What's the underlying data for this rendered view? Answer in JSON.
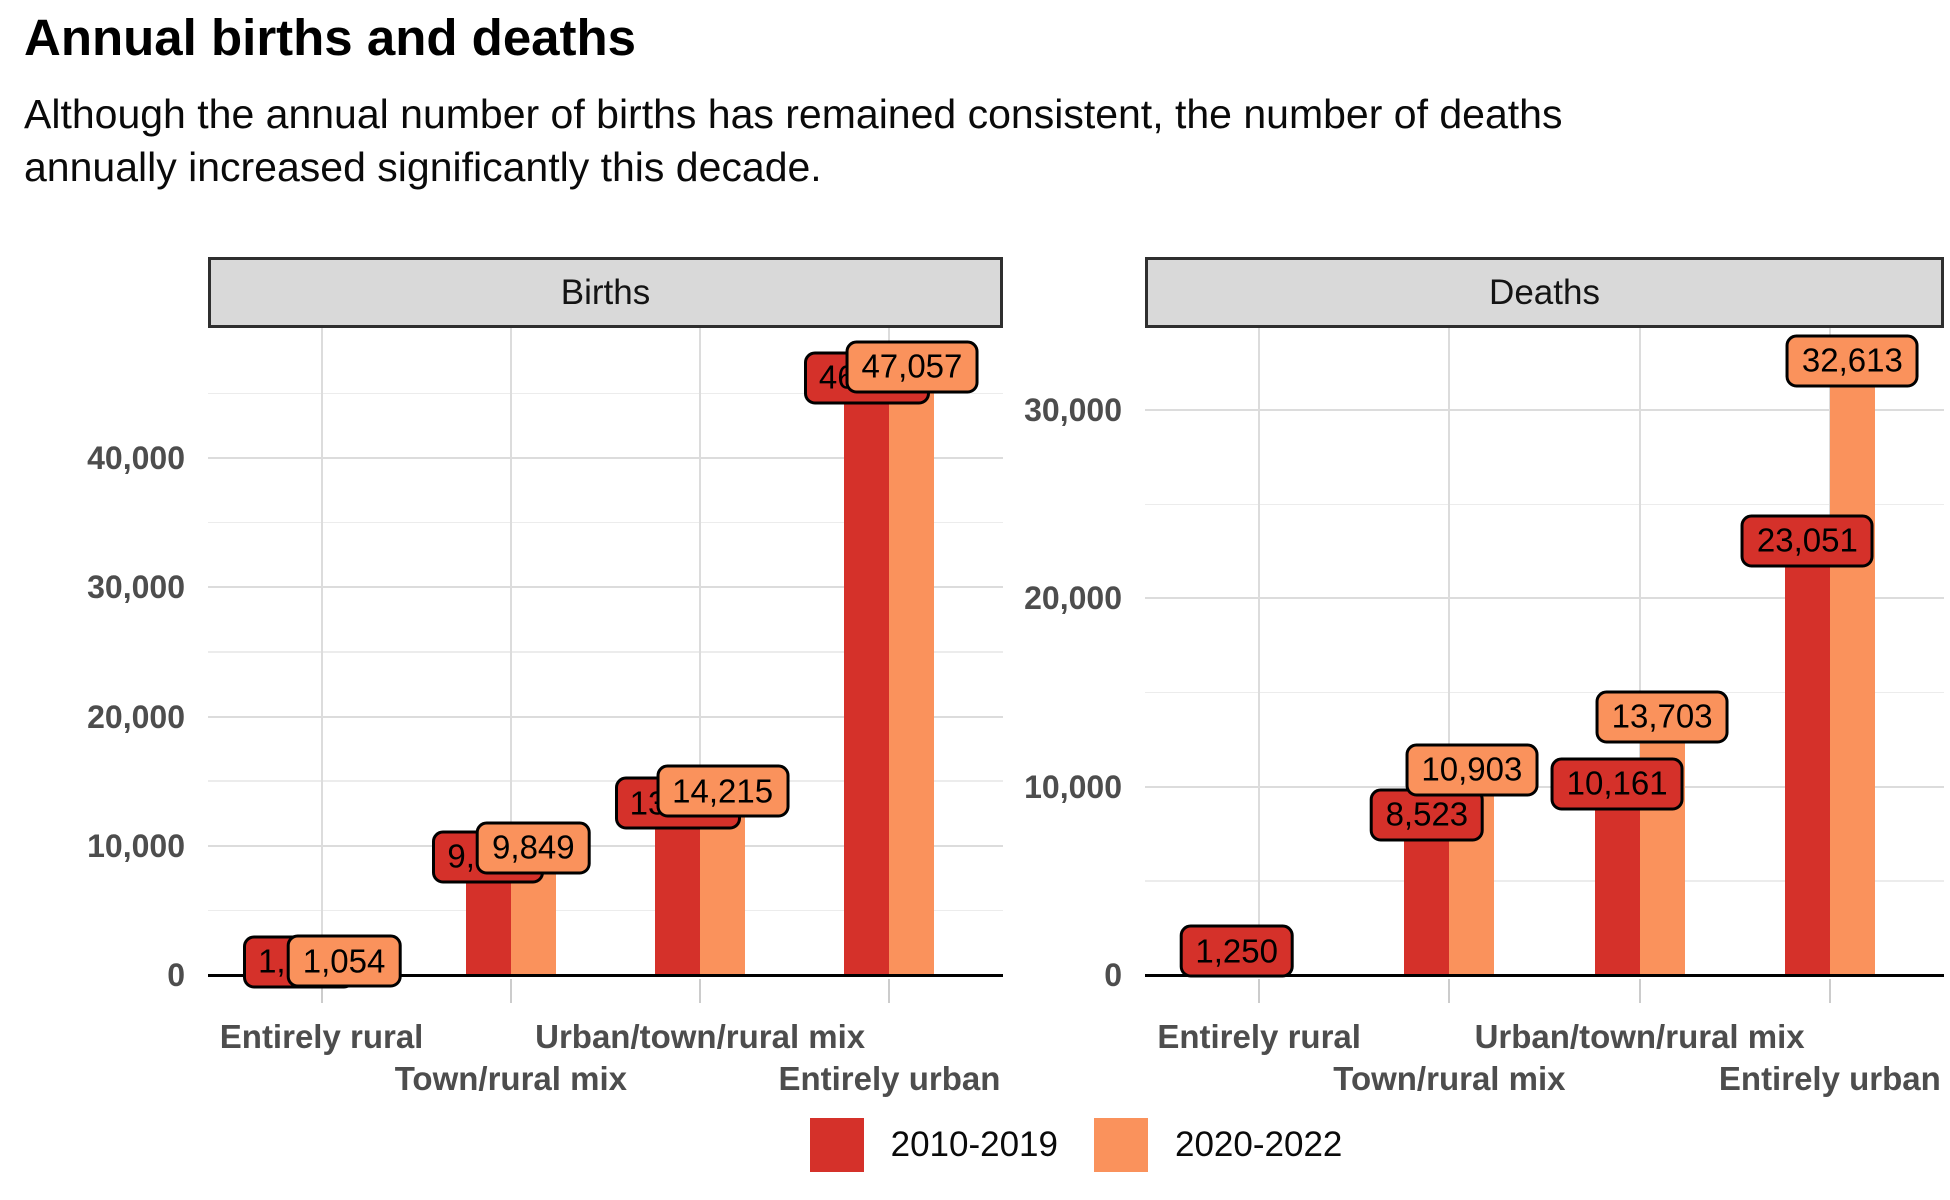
{
  "title": "Annual births and deaths",
  "subtitle_line1": "Although the annual number of births has remained consistent, the number of deaths",
  "subtitle_line2": "annually increased significantly this decade.",
  "colors": {
    "red": "#d5312a",
    "orange": "#fa925c",
    "strip_bg": "#d9d9d9",
    "grid_major": "#dcdcdc",
    "axis_line": "#000000",
    "axis_text": "#4d4d4d"
  },
  "legend": {
    "items": [
      {
        "label": "2010-2019",
        "color_key": "red"
      },
      {
        "label": "2020-2022",
        "color_key": "orange"
      }
    ]
  },
  "chart_data": [
    {
      "type": "bar",
      "panel": "Births",
      "categories": [
        "Entirely rural",
        "Town/rural mix",
        "Urban/town/rural mix",
        "Entirely urban"
      ],
      "yticks": [
        {
          "value": 0,
          "label": "0"
        },
        {
          "value": 10000,
          "label": "10,000"
        },
        {
          "value": 20000,
          "label": "20,000"
        },
        {
          "value": 30000,
          "label": "30,000"
        },
        {
          "value": 40000,
          "label": "40,000"
        }
      ],
      "ylim": [
        0,
        49400
      ],
      "grid": "on",
      "series": [
        {
          "name": "2010-2019",
          "color_key": "red",
          "values": [
            1020,
            9150,
            13300,
            46200
          ],
          "labels": [
            "1,",
            "9,",
            "13",
            "46"
          ],
          "labels_partially_hidden": true
        },
        {
          "name": "2020-2022",
          "color_key": "orange",
          "values": [
            1054,
            9849,
            14215,
            47057
          ],
          "labels": [
            "1,054",
            "9,849",
            "14,215",
            "47,057"
          ]
        }
      ]
    },
    {
      "type": "bar",
      "panel": "Deaths",
      "categories": [
        "Entirely rural",
        "Town/rural mix",
        "Urban/town/rural mix",
        "Entirely urban"
      ],
      "yticks": [
        {
          "value": 0,
          "label": "0"
        },
        {
          "value": 10000,
          "label": "10,000"
        },
        {
          "value": 20000,
          "label": "20,000"
        },
        {
          "value": 30000,
          "label": "30,000"
        }
      ],
      "ylim": [
        0,
        34250
      ],
      "grid": "on",
      "series": [
        {
          "name": "2010-2019",
          "color_key": "red",
          "values": [
            1250,
            8523,
            10161,
            23051
          ],
          "labels": [
            "1,250",
            "8,523",
            "10,161",
            "23,051"
          ]
        },
        {
          "name": "2020-2022",
          "color_key": "orange",
          "values": [
            null,
            10903,
            13703,
            32613
          ],
          "labels": [
            null,
            "10,903",
            "13,703",
            "32,613"
          ]
        }
      ]
    }
  ]
}
